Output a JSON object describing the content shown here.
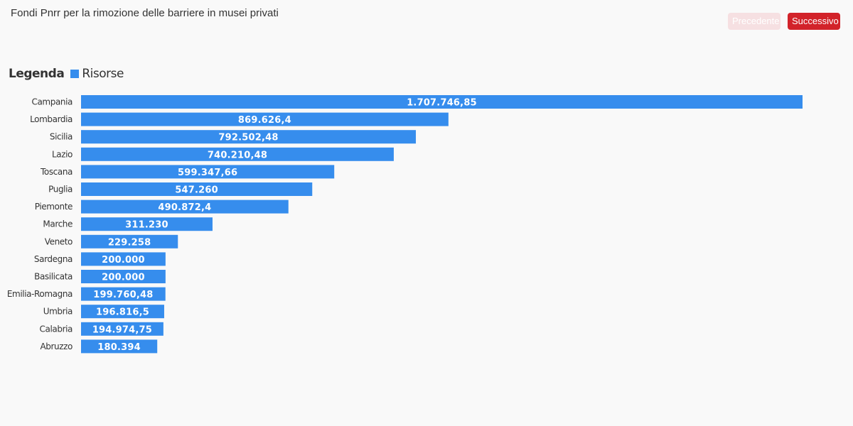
{
  "header": {
    "title": "Fondi Pnrr per la rimozione delle barriere in musei privati"
  },
  "nav": {
    "prev_label": "Precedente",
    "next_label": "Successivo"
  },
  "legend": {
    "title": "Legenda",
    "series_label": "Risorse"
  },
  "colors": {
    "bar": "#368ded",
    "next_button": "#d2232a",
    "prev_button": "#f6e0e2"
  },
  "chart_data": {
    "type": "bar",
    "orientation": "horizontal",
    "categories": [
      "Campania",
      "Lombardia",
      "Sicilia",
      "Lazio",
      "Toscana",
      "Puglia",
      "Piemonte",
      "Marche",
      "Veneto",
      "Sardegna",
      "Basilicata",
      "Emilia-Romagna",
      "Umbria",
      "Calabria",
      "Abruzzo"
    ],
    "series": [
      {
        "name": "Risorse",
        "values": [
          1707746.85,
          869626.4,
          792502.48,
          740210.48,
          599347.66,
          547260,
          490872.4,
          311230,
          229258,
          200000,
          200000,
          199760.48,
          196816.5,
          194974.75,
          180394
        ],
        "labels": [
          "1.707.746,85",
          "869.626,4",
          "792.502,48",
          "740.210,48",
          "599.347,66",
          "547.260",
          "490.872,4",
          "311.230",
          "229.258",
          "200.000",
          "200.000",
          "199.760,48",
          "196.816,5",
          "194.974,75",
          "180.394"
        ]
      }
    ],
    "title": "Fondi Pnrr per la rimozione delle barriere in musei privati",
    "xlabel": "",
    "ylabel": "",
    "xlim": [
      0,
      1707746.85
    ],
    "grid": false,
    "legend_position": "top-left"
  }
}
